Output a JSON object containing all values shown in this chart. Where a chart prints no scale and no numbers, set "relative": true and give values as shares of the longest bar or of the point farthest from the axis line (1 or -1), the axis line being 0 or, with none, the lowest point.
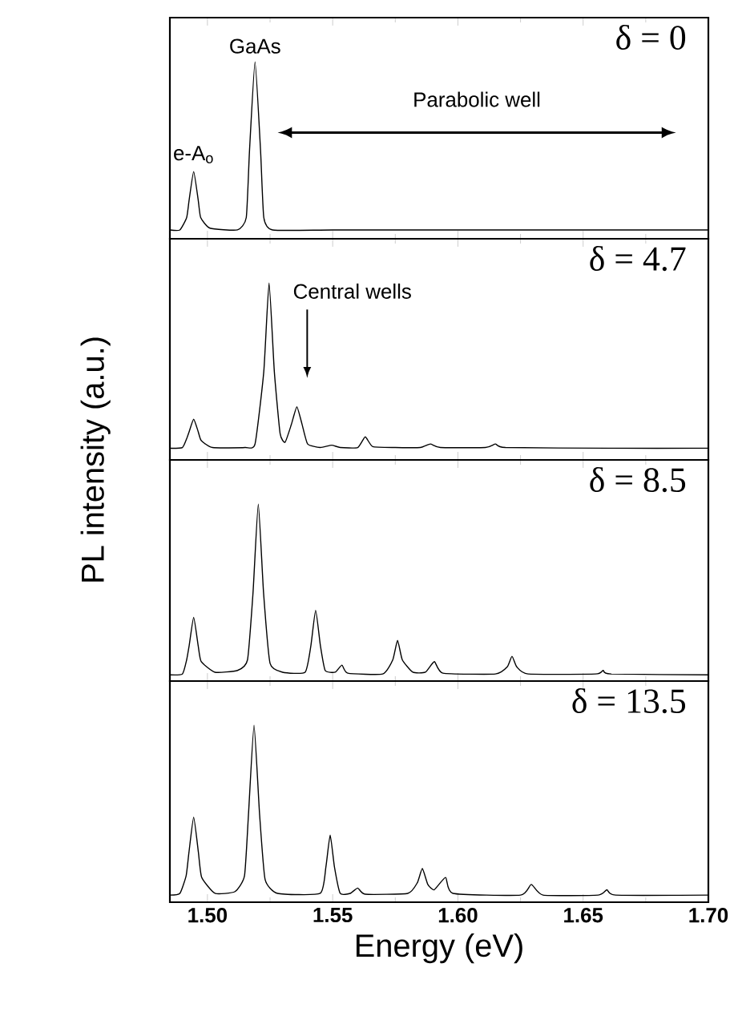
{
  "chart_data": [
    {
      "type": "line",
      "relative": true,
      "color": "#000000",
      "title": "δ = 0",
      "xlim": [
        1.485,
        1.7
      ],
      "tick_labels": false,
      "xticks": [
        1.5,
        1.55,
        1.6,
        1.65,
        1.7
      ],
      "annotations": [
        {
          "text": "e-A$_{o}$",
          "x": 1.4945,
          "y": 0.38
        },
        {
          "text": "GaAs",
          "x": 1.519,
          "y": 1.0
        },
        "Parabolic well"
      ],
      "x": [
        1.485,
        1.489,
        1.4917,
        1.4927,
        1.4945,
        1.4963,
        1.4973,
        1.501,
        1.512,
        1.5155,
        1.5168,
        1.519,
        1.5212,
        1.5225,
        1.526,
        1.55,
        1.6,
        1.65,
        1.7
      ],
      "values": [
        0.05,
        0.05,
        0.12,
        0.22,
        0.38,
        0.22,
        0.12,
        0.06,
        0.05,
        0.12,
        0.5,
        1.0,
        0.5,
        0.12,
        0.05,
        0.05,
        0.05,
        0.05,
        0.05
      ]
    },
    {
      "type": "line",
      "relative": true,
      "color": "#000000",
      "title": "δ = 4.7",
      "xlim": [
        1.485,
        1.7
      ],
      "tick_labels": false,
      "xticks": [
        1.5,
        1.55,
        1.6,
        1.65,
        1.7
      ],
      "annotations": [
        "Central wells"
      ],
      "x": [
        1.485,
        1.49,
        1.4917,
        1.4927,
        1.4945,
        1.4963,
        1.4975,
        1.502,
        1.515,
        1.519,
        1.5225,
        1.5246,
        1.5267,
        1.529,
        1.531,
        1.5335,
        1.5357,
        1.5378,
        1.54,
        1.545,
        1.5496,
        1.553,
        1.56,
        1.563,
        1.566,
        1.575,
        1.585,
        1.589,
        1.593,
        1.611,
        1.615,
        1.619,
        1.66,
        1.7
      ],
      "values": [
        0.066,
        0.07,
        0.12,
        0.16,
        0.23,
        0.16,
        0.11,
        0.07,
        0.07,
        0.09,
        0.5,
        1.0,
        0.5,
        0.15,
        0.1,
        0.2,
        0.3,
        0.2,
        0.09,
        0.07,
        0.083,
        0.07,
        0.07,
        0.13,
        0.075,
        0.07,
        0.07,
        0.09,
        0.07,
        0.07,
        0.09,
        0.07,
        0.066,
        0.066
      ]
    },
    {
      "type": "line",
      "relative": true,
      "color": "#000000",
      "title": "δ = 8.5",
      "xlim": [
        1.485,
        1.7
      ],
      "tick_labels": false,
      "ylabel": "PL intensity (a.u.)",
      "xticks": [
        1.5,
        1.55,
        1.6,
        1.65,
        1.7
      ],
      "x": [
        1.485,
        1.49,
        1.4917,
        1.4927,
        1.4945,
        1.4963,
        1.4975,
        1.503,
        1.512,
        1.516,
        1.5182,
        1.5203,
        1.5224,
        1.525,
        1.53,
        1.539,
        1.5413,
        1.5432,
        1.5451,
        1.547,
        1.551,
        1.5537,
        1.556,
        1.57,
        1.574,
        1.5759,
        1.5778,
        1.582,
        1.587,
        1.5906,
        1.594,
        1.615,
        1.6197,
        1.6216,
        1.6235,
        1.628,
        1.655,
        1.658,
        1.661,
        1.7
      ],
      "values": [
        0.035,
        0.04,
        0.12,
        0.2,
        0.36,
        0.2,
        0.11,
        0.05,
        0.06,
        0.12,
        0.5,
        1.0,
        0.5,
        0.1,
        0.05,
        0.05,
        0.2,
        0.4,
        0.2,
        0.06,
        0.05,
        0.09,
        0.045,
        0.04,
        0.12,
        0.23,
        0.12,
        0.05,
        0.05,
        0.11,
        0.045,
        0.04,
        0.08,
        0.14,
        0.08,
        0.04,
        0.04,
        0.06,
        0.04,
        0.035
      ]
    },
    {
      "type": "line",
      "relative": true,
      "color": "#000000",
      "title": "δ = 13.5",
      "xlim": [
        1.485,
        1.7
      ],
      "tick_labels": "x",
      "xlabel": "Energy (eV)",
      "xticks": [
        {
          "value": 1.5,
          "label": "1.50"
        },
        {
          "value": 1.55,
          "label": "1.55"
        },
        {
          "value": 1.6,
          "label": "1.60"
        },
        {
          "value": 1.65,
          "label": "1.65"
        },
        {
          "value": 1.7,
          "label": "1.70"
        }
      ],
      "x": [
        1.485,
        1.489,
        1.4915,
        1.4926,
        1.4945,
        1.4964,
        1.4977,
        1.503,
        1.511,
        1.5148,
        1.5164,
        1.5186,
        1.5208,
        1.523,
        1.528,
        1.545,
        1.5473,
        1.549,
        1.5507,
        1.553,
        1.557,
        1.56,
        1.563,
        1.58,
        1.5838,
        1.5858,
        1.588,
        1.5905,
        1.5951,
        1.598,
        1.625,
        1.6293,
        1.634,
        1.656,
        1.6595,
        1.663,
        1.7
      ],
      "values": [
        0.04,
        0.05,
        0.15,
        0.28,
        0.48,
        0.28,
        0.14,
        0.05,
        0.06,
        0.15,
        0.5,
        1.0,
        0.5,
        0.13,
        0.05,
        0.05,
        0.2,
        0.38,
        0.2,
        0.05,
        0.05,
        0.08,
        0.045,
        0.05,
        0.11,
        0.19,
        0.1,
        0.07,
        0.14,
        0.05,
        0.04,
        0.1,
        0.04,
        0.04,
        0.07,
        0.04,
        0.04
      ]
    }
  ]
}
